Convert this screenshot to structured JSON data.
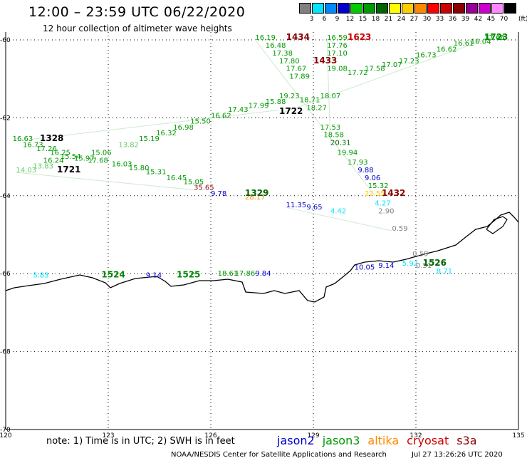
{
  "title": "12:00 – 23:59 UTC 06/22/2020",
  "subtitle": "12 hour collection of altimeter wave heights",
  "legend": {
    "unit": "(ft)",
    "steps": [
      {
        "label": "3",
        "color": "#808080"
      },
      {
        "label": "6",
        "color": "#00e5ff"
      },
      {
        "label": "9",
        "color": "#0088ff"
      },
      {
        "label": "12",
        "color": "#0000cd"
      },
      {
        "label": "15",
        "color": "#00cc00"
      },
      {
        "label": "18",
        "color": "#009900"
      },
      {
        "label": "21",
        "color": "#006400"
      },
      {
        "label": "24",
        "color": "#ffff00"
      },
      {
        "label": "27",
        "color": "#ffcc00"
      },
      {
        "label": "30",
        "color": "#ff8800"
      },
      {
        "label": "33",
        "color": "#ff0000"
      },
      {
        "label": "36",
        "color": "#cc0000"
      },
      {
        "label": "39",
        "color": "#8b0000"
      },
      {
        "label": "42",
        "color": "#990099"
      },
      {
        "label": "45",
        "color": "#cc00cc"
      },
      {
        "label": "70",
        "color": "#ff88ff"
      },
      {
        "label": "",
        "color": "#000000"
      }
    ]
  },
  "axes": {
    "lat_labels": [
      "-60",
      "-62",
      "-64",
      "-66",
      "-68",
      "-70"
    ],
    "lon_labels": [
      "120",
      "123",
      "126",
      "129",
      "132",
      "135"
    ]
  },
  "passes": [
    {
      "label": "1328",
      "color": "#000000",
      "lon": 121.0,
      "lat": -62.6
    },
    {
      "label": "1721",
      "color": "#000000",
      "lon": 121.5,
      "lat": -63.4
    },
    {
      "label": "1722",
      "color": "#000000",
      "lon": 128.0,
      "lat": -61.9
    },
    {
      "label": "1723",
      "color": "#008800",
      "lon": 134.0,
      "lat": -60.0
    },
    {
      "label": "1434",
      "color": "#8b0000",
      "lon": 128.2,
      "lat": -60.0
    },
    {
      "label": "1623",
      "color": "#cc0000",
      "lon": 130.0,
      "lat": -60.0
    },
    {
      "label": "1433",
      "color": "#8b0000",
      "lon": 129.0,
      "lat": -60.6
    },
    {
      "label": "1329",
      "color": "#006400",
      "lon": 127.0,
      "lat": -64.0
    },
    {
      "label": "1432",
      "color": "#8b0000",
      "lon": 131.0,
      "lat": -64.0
    },
    {
      "label": "1524",
      "color": "#008800",
      "lon": 122.8,
      "lat": -66.1
    },
    {
      "label": "1525",
      "color": "#008800",
      "lon": 125.0,
      "lat": -66.1
    },
    {
      "label": "1526",
      "color": "#006400",
      "lon": 132.2,
      "lat": -65.8
    }
  ],
  "wave_heights": [
    {
      "v": "16.63",
      "c": "#009900",
      "lon": 120.2,
      "lat": -62.6
    },
    {
      "v": "16.73",
      "c": "#009900",
      "lon": 120.5,
      "lat": -62.75
    },
    {
      "v": "17.26",
      "c": "#009900",
      "lon": 120.9,
      "lat": -62.85
    },
    {
      "v": "16.25",
      "c": "#009900",
      "lon": 121.3,
      "lat": -62.95
    },
    {
      "v": "15.54",
      "c": "#009900",
      "lon": 121.6,
      "lat": -63.05
    },
    {
      "v": "16.24",
      "c": "#009900",
      "lon": 121.1,
      "lat": -63.15
    },
    {
      "v": "15.97",
      "c": "#009900",
      "lon": 122.0,
      "lat": -63.1
    },
    {
      "v": "15.06",
      "c": "#009900",
      "lon": 122.5,
      "lat": -62.95
    },
    {
      "v": "13.82",
      "c": "#66cc66",
      "lon": 123.3,
      "lat": -62.75
    },
    {
      "v": "15.19",
      "c": "#009900",
      "lon": 123.9,
      "lat": -62.6
    },
    {
      "v": "16.32",
      "c": "#009900",
      "lon": 124.4,
      "lat": -62.45
    },
    {
      "v": "16.98",
      "c": "#009900",
      "lon": 124.9,
      "lat": -62.3
    },
    {
      "v": "15.50",
      "c": "#009900",
      "lon": 125.4,
      "lat": -62.15
    },
    {
      "v": "16.62",
      "c": "#009900",
      "lon": 126.0,
      "lat": -62.0
    },
    {
      "v": "17.43",
      "c": "#009900",
      "lon": 126.5,
      "lat": -61.85
    },
    {
      "v": "17.99",
      "c": "#009900",
      "lon": 127.1,
      "lat": -61.75
    },
    {
      "v": "15.88",
      "c": "#009900",
      "lon": 127.6,
      "lat": -61.65
    },
    {
      "v": "14.03",
      "c": "#66cc66",
      "lon": 120.3,
      "lat": -63.4
    },
    {
      "v": "13.83",
      "c": "#66cc66",
      "lon": 120.8,
      "lat": -63.3
    },
    {
      "v": "17.68",
      "c": "#009900",
      "lon": 122.4,
      "lat": -63.15
    },
    {
      "v": "16.03",
      "c": "#009900",
      "lon": 123.1,
      "lat": -63.25
    },
    {
      "v": "15.80",
      "c": "#009900",
      "lon": 123.6,
      "lat": -63.35
    },
    {
      "v": "15.31",
      "c": "#009900",
      "lon": 124.1,
      "lat": -63.45
    },
    {
      "v": "16.45",
      "c": "#009900",
      "lon": 124.7,
      "lat": -63.6
    },
    {
      "v": "15.05",
      "c": "#009900",
      "lon": 125.2,
      "lat": -63.7
    },
    {
      "v": "35.65",
      "c": "#8b0000",
      "lon": 125.5,
      "lat": -63.85
    },
    {
      "v": "16.19",
      "c": "#009900",
      "lon": 127.3,
      "lat": -60.0
    },
    {
      "v": "16.48",
      "c": "#009900",
      "lon": 127.6,
      "lat": -60.2
    },
    {
      "v": "17.38",
      "c": "#009900",
      "lon": 127.8,
      "lat": -60.4
    },
    {
      "v": "17.80",
      "c": "#009900",
      "lon": 128.0,
      "lat": -60.6
    },
    {
      "v": "17.67",
      "c": "#009900",
      "lon": 128.2,
      "lat": -60.8
    },
    {
      "v": "17.89",
      "c": "#009900",
      "lon": 128.3,
      "lat": -61.0
    },
    {
      "v": "16.59",
      "c": "#009900",
      "lon": 129.4,
      "lat": -60.0
    },
    {
      "v": "17.76",
      "c": "#009900",
      "lon": 129.4,
      "lat": -60.2
    },
    {
      "v": "17.10",
      "c": "#009900",
      "lon": 129.4,
      "lat": -60.4
    },
    {
      "v": "19.08",
      "c": "#009900",
      "lon": 129.4,
      "lat": -60.8
    },
    {
      "v": "19.23",
      "c": "#009900",
      "lon": 128.0,
      "lat": -61.5
    },
    {
      "v": "18.71",
      "c": "#009900",
      "lon": 128.6,
      "lat": -61.6
    },
    {
      "v": "18.27",
      "c": "#009900",
      "lon": 128.8,
      "lat": -61.8
    },
    {
      "v": "18.07",
      "c": "#009900",
      "lon": 129.2,
      "lat": -61.5
    },
    {
      "v": "17.53",
      "c": "#009900",
      "lon": 129.2,
      "lat": -62.3
    },
    {
      "v": "18.58",
      "c": "#009900",
      "lon": 129.3,
      "lat": -62.5
    },
    {
      "v": "20.31",
      "c": "#006400",
      "lon": 129.5,
      "lat": -62.7
    },
    {
      "v": "19.94",
      "c": "#009900",
      "lon": 129.7,
      "lat": -62.95
    },
    {
      "v": "17.93",
      "c": "#009900",
      "lon": 130.0,
      "lat": -63.2
    },
    {
      "v": "9.88",
      "c": "#0000cd",
      "lon": 130.3,
      "lat": -63.4
    },
    {
      "v": "9.06",
      "c": "#0000cd",
      "lon": 130.5,
      "lat": -63.6
    },
    {
      "v": "15.32",
      "c": "#009900",
      "lon": 130.6,
      "lat": -63.8
    },
    {
      "v": "22.55",
      "c": "#ffcc00",
      "lon": 130.5,
      "lat": -64.0
    },
    {
      "v": "17.58",
      "c": "#009900",
      "lon": 130.5,
      "lat": -60.8
    },
    {
      "v": "17.72",
      "c": "#009900",
      "lon": 130.0,
      "lat": -60.9
    },
    {
      "v": "17.07",
      "c": "#009900",
      "lon": 131.0,
      "lat": -60.7
    },
    {
      "v": "17.23",
      "c": "#009900",
      "lon": 131.5,
      "lat": -60.6
    },
    {
      "v": "16.73",
      "c": "#009900",
      "lon": 132.0,
      "lat": -60.45
    },
    {
      "v": "16.62",
      "c": "#009900",
      "lon": 132.6,
      "lat": -60.3
    },
    {
      "v": "16.61",
      "c": "#009900",
      "lon": 133.1,
      "lat": -60.15
    },
    {
      "v": "16.04",
      "c": "#009900",
      "lon": 133.6,
      "lat": -60.1
    },
    {
      "v": "17.66",
      "c": "#009900",
      "lon": 134.0,
      "lat": -60.0
    },
    {
      "v": "9.78",
      "c": "#0000cd",
      "lon": 126.0,
      "lat": -64.0
    },
    {
      "v": "28.17",
      "c": "#ff8800",
      "lon": 127.0,
      "lat": -64.1
    },
    {
      "v": "11.35",
      "c": "#0000cd",
      "lon": 128.2,
      "lat": -64.3
    },
    {
      "v": "9.65",
      "c": "#0000cd",
      "lon": 128.8,
      "lat": -64.35
    },
    {
      "v": "4.42",
      "c": "#00e5ff",
      "lon": 129.5,
      "lat": -64.45
    },
    {
      "v": "4.27",
      "c": "#00e5ff",
      "lon": 130.8,
      "lat": -64.25
    },
    {
      "v": "2.90",
      "c": "#808080",
      "lon": 130.9,
      "lat": -64.45
    },
    {
      "v": "0.59",
      "c": "#808080",
      "lon": 131.3,
      "lat": -64.9
    },
    {
      "v": "0.59",
      "c": "#808080",
      "lon": 131.9,
      "lat": -65.55
    },
    {
      "v": "10.05",
      "c": "#0000cd",
      "lon": 130.2,
      "lat": -65.9
    },
    {
      "v": "9.14",
      "c": "#0000cd",
      "lon": 130.9,
      "lat": -65.85
    },
    {
      "v": "5.92",
      "c": "#00e5ff",
      "lon": 131.6,
      "lat": -65.8
    },
    {
      "v": "0.51",
      "c": "#808080",
      "lon": 132.0,
      "lat": -65.85
    },
    {
      "v": "8.71",
      "c": "#00e5ff",
      "lon": 132.6,
      "lat": -66.0
    },
    {
      "v": "5.83",
      "c": "#00e5ff",
      "lon": 120.8,
      "lat": -66.1
    },
    {
      "v": "9.14",
      "c": "#0000cd",
      "lon": 124.1,
      "lat": -66.1
    },
    {
      "v": "18.61",
      "c": "#009900",
      "lon": 126.2,
      "lat": -66.05
    },
    {
      "v": "17.86",
      "c": "#009900",
      "lon": 126.7,
      "lat": -66.05
    },
    {
      "v": "9.84",
      "c": "#0000cd",
      "lon": 127.3,
      "lat": -66.05
    }
  ],
  "note": "note:  1) Time is in UTC;  2) SWH is in feet",
  "satellites": [
    {
      "name": "jason2",
      "color": "#0000cc"
    },
    {
      "name": "jason3",
      "color": "#009900"
    },
    {
      "name": "altika",
      "color": "#ff8800"
    },
    {
      "name": "cryosat",
      "color": "#cc0000"
    },
    {
      "name": "s3a",
      "color": "#8b0000"
    }
  ],
  "credit": "NOAA/NESDIS Center for Satellite Applications and Research",
  "generated": "Jul 27 13:26:26 UTC 2020"
}
